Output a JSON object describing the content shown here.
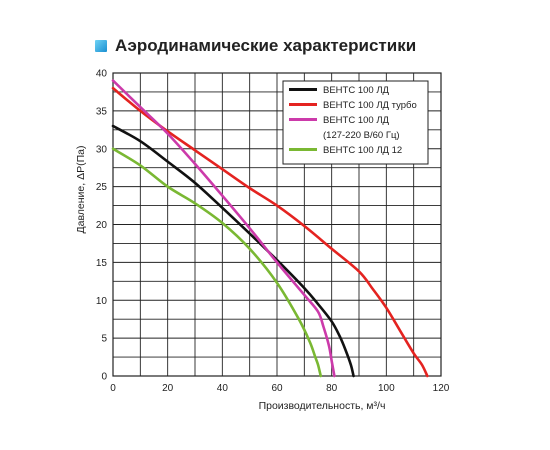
{
  "title": "Аэродинамические характеристики",
  "chart_data": {
    "type": "line",
    "xlabel": "Производительность, м³/ч",
    "ylabel": "Давление, ΔP(Па)",
    "xlim": [
      0,
      120
    ],
    "ylim": [
      0,
      40
    ],
    "xticks": [
      "0",
      "20",
      "40",
      "60",
      "80",
      "100",
      "120"
    ],
    "yticks": [
      "0",
      "5",
      "10",
      "15",
      "20",
      "25",
      "30",
      "35",
      "40"
    ],
    "grid": true,
    "legend_position": "top-right",
    "series": [
      {
        "name": "ВЕНТС 100 ЛД",
        "color": "#111111",
        "x": [
          0,
          10,
          20,
          30,
          40,
          50,
          60,
          70,
          75,
          80,
          83,
          85,
          87,
          88
        ],
        "y": [
          33,
          31,
          28.3,
          25.5,
          22.2,
          18.8,
          15.3,
          11.6,
          9.5,
          7.2,
          5.2,
          3.5,
          1.5,
          0
        ]
      },
      {
        "name": "ВЕНТС 100 ЛД турбо",
        "color": "#e42320",
        "x": [
          0,
          10,
          20,
          30,
          40,
          50,
          60,
          70,
          80,
          90,
          95,
          100,
          105,
          110,
          113,
          115
        ],
        "y": [
          38,
          35,
          32.3,
          29.8,
          27.3,
          24.8,
          22.5,
          19.8,
          16.8,
          13.8,
          11.5,
          9,
          6,
          3,
          1.5,
          0
        ]
      },
      {
        "name": "ВЕНТС 100 ЛД\n(127-220 В/60 Гц)",
        "color": "#cc3aaa",
        "x": [
          0,
          10,
          20,
          30,
          40,
          50,
          60,
          70,
          75,
          77,
          79,
          80,
          81
        ],
        "y": [
          39,
          35.5,
          32,
          28,
          23.8,
          19.5,
          15,
          10.7,
          8.5,
          6.5,
          4,
          2,
          0
        ]
      },
      {
        "name": "ВЕНТС 100 ЛД 12",
        "color": "#7ab833",
        "x": [
          0,
          10,
          20,
          30,
          40,
          50,
          60,
          68,
          72,
          74,
          75,
          76
        ],
        "y": [
          30,
          27.8,
          25,
          22.8,
          20.2,
          16.8,
          12.3,
          7.5,
          4.5,
          2.5,
          1.5,
          0
        ]
      }
    ]
  }
}
